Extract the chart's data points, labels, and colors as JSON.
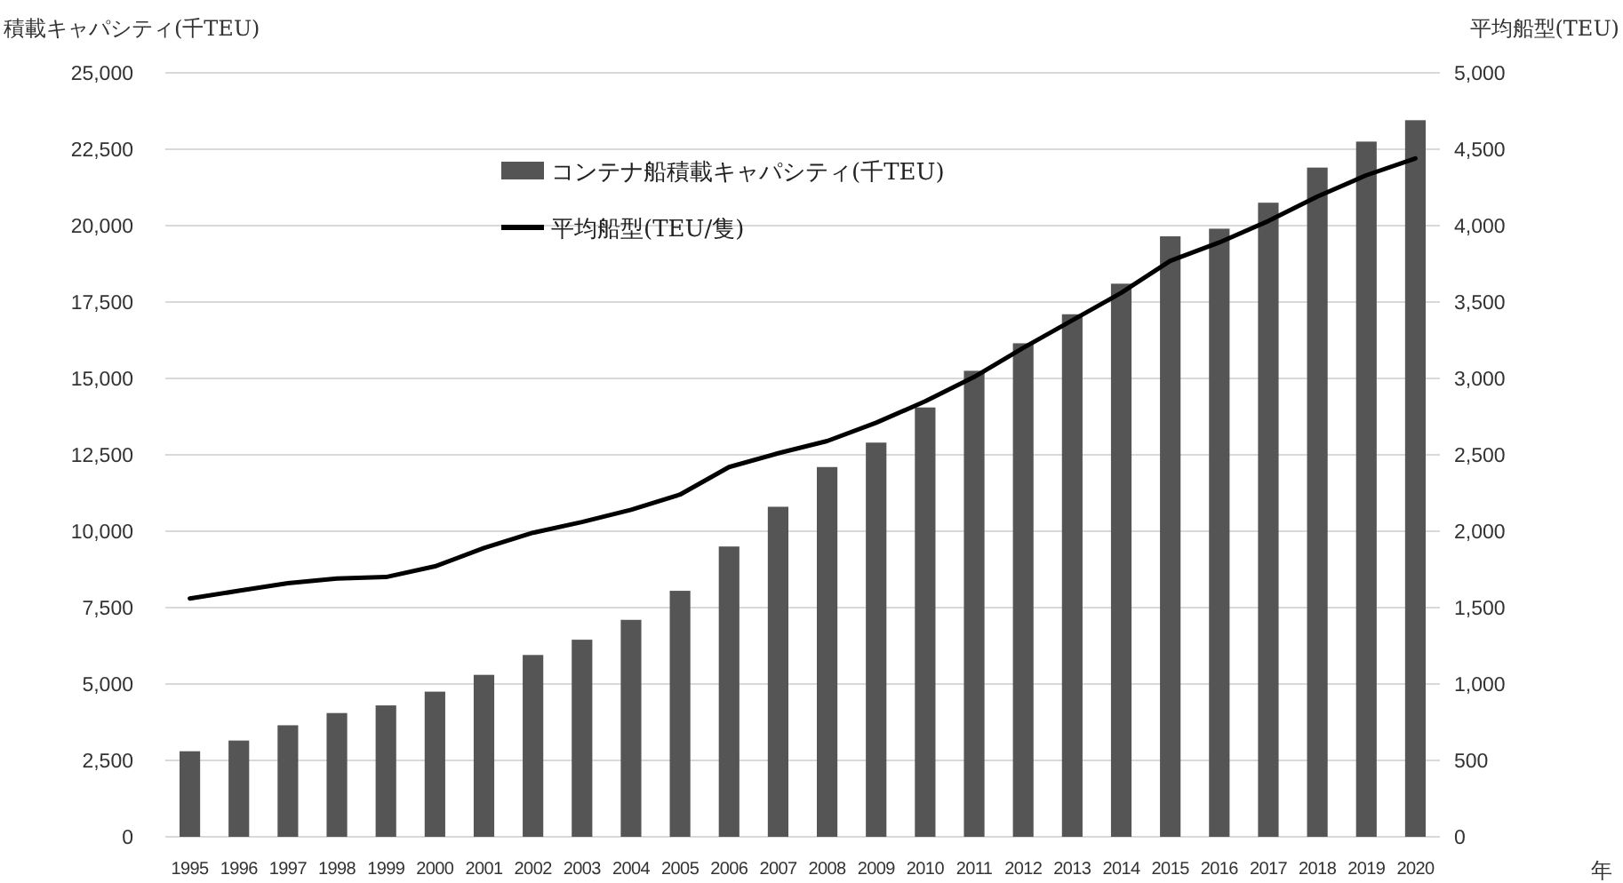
{
  "chart_data": {
    "type": "bar",
    "ylabel": "積載キャパシティ(千TEU)",
    "y2label": "平均船型(TEU)",
    "xlabel": "年",
    "categories": [
      "1995",
      "1996",
      "1997",
      "1998",
      "1999",
      "2000",
      "2001",
      "2002",
      "2003",
      "2004",
      "2005",
      "2006",
      "2007",
      "2008",
      "2009",
      "2010",
      "2011",
      "2012",
      "2013",
      "2014",
      "2015",
      "2016",
      "2017",
      "2018",
      "2019",
      "2020"
    ],
    "series": [
      {
        "name": "コンテナ船積載キャパシティ(千TEU)",
        "color": "#555555",
        "values": [
          2800,
          3150,
          3650,
          4050,
          4300,
          4750,
          5300,
          5950,
          6450,
          7100,
          8050,
          9500,
          10800,
          12100,
          12900,
          14050,
          15250,
          16150,
          17100,
          18100,
          19650,
          19900,
          20750,
          21900,
          22750,
          23450
        ]
      },
      {
        "name": "平均船型(TEU/隻)",
        "type": "line",
        "axis": "y2",
        "color": "#000000",
        "values": [
          1560,
          1610,
          1660,
          1690,
          1700,
          1770,
          1890,
          1990,
          2060,
          2140,
          2240,
          2420,
          2510,
          2590,
          2710,
          2850,
          3010,
          3200,
          3380,
          3560,
          3770,
          3890,
          4030,
          4190,
          4330,
          4440
        ]
      }
    ],
    "ylim": [
      0,
      25000
    ],
    "yticks": [
      0,
      {
        "value": 2500,
        "label": "2,500"
      },
      {
        "value": 5000,
        "label": "5,000"
      },
      {
        "value": 7500,
        "label": "7,500"
      },
      {
        "value": 10000,
        "label": "10,000"
      },
      {
        "value": 12500,
        "label": "12,500"
      },
      {
        "value": 15000,
        "label": "15,000"
      },
      {
        "value": 17500,
        "label": "17,500"
      },
      {
        "value": 20000,
        "label": "20,000"
      },
      {
        "value": 22500,
        "label": "22,500"
      },
      {
        "value": 25000,
        "label": "25,000"
      }
    ],
    "y2lim": [
      0,
      5000
    ],
    "y2ticks": [
      0,
      500,
      {
        "value": 1000,
        "label": "1,000"
      },
      {
        "value": 1500,
        "label": "1,500"
      },
      {
        "value": 2000,
        "label": "2,000"
      },
      {
        "value": 2500,
        "label": "2,500"
      },
      {
        "value": 3000,
        "label": "3,000"
      },
      {
        "value": 3500,
        "label": "3,500"
      },
      {
        "value": 4000,
        "label": "4,000"
      },
      {
        "value": 4500,
        "label": "4,500"
      },
      {
        "value": 5000,
        "label": "5,000"
      }
    ],
    "grid": "y",
    "legend": "top",
    "marker": "none",
    "line_style": "solid"
  }
}
